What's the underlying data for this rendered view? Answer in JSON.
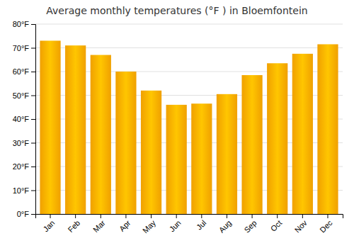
{
  "chart_data": {
    "type": "bar",
    "title": "Average monthly temperatures (°F ) in Bloemfontein",
    "categories": [
      "Jan",
      "Feb",
      "Mar",
      "Apr",
      "May",
      "Jun",
      "Jul",
      "Aug",
      "Sep",
      "Oct",
      "Nov",
      "Dec"
    ],
    "values": [
      73,
      71,
      67,
      60,
      52,
      46,
      46.5,
      50.5,
      58.5,
      63.5,
      67.5,
      71.5
    ],
    "color": "#F0A000",
    "ylim": [
      0,
      80
    ],
    "yticks": [
      {
        "value": 0,
        "label": "0°F"
      },
      {
        "value": 10,
        "label": "10°F"
      },
      {
        "value": 20,
        "label": "20°F"
      },
      {
        "value": 30,
        "label": "30°F"
      },
      {
        "value": 40,
        "label": "40°F"
      },
      {
        "value": 50,
        "label": "50°F"
      },
      {
        "value": 60,
        "label": "60°F"
      },
      {
        "value": 70,
        "label": "70°F"
      },
      {
        "value": 80,
        "label": "80°F"
      }
    ],
    "grid": true
  }
}
